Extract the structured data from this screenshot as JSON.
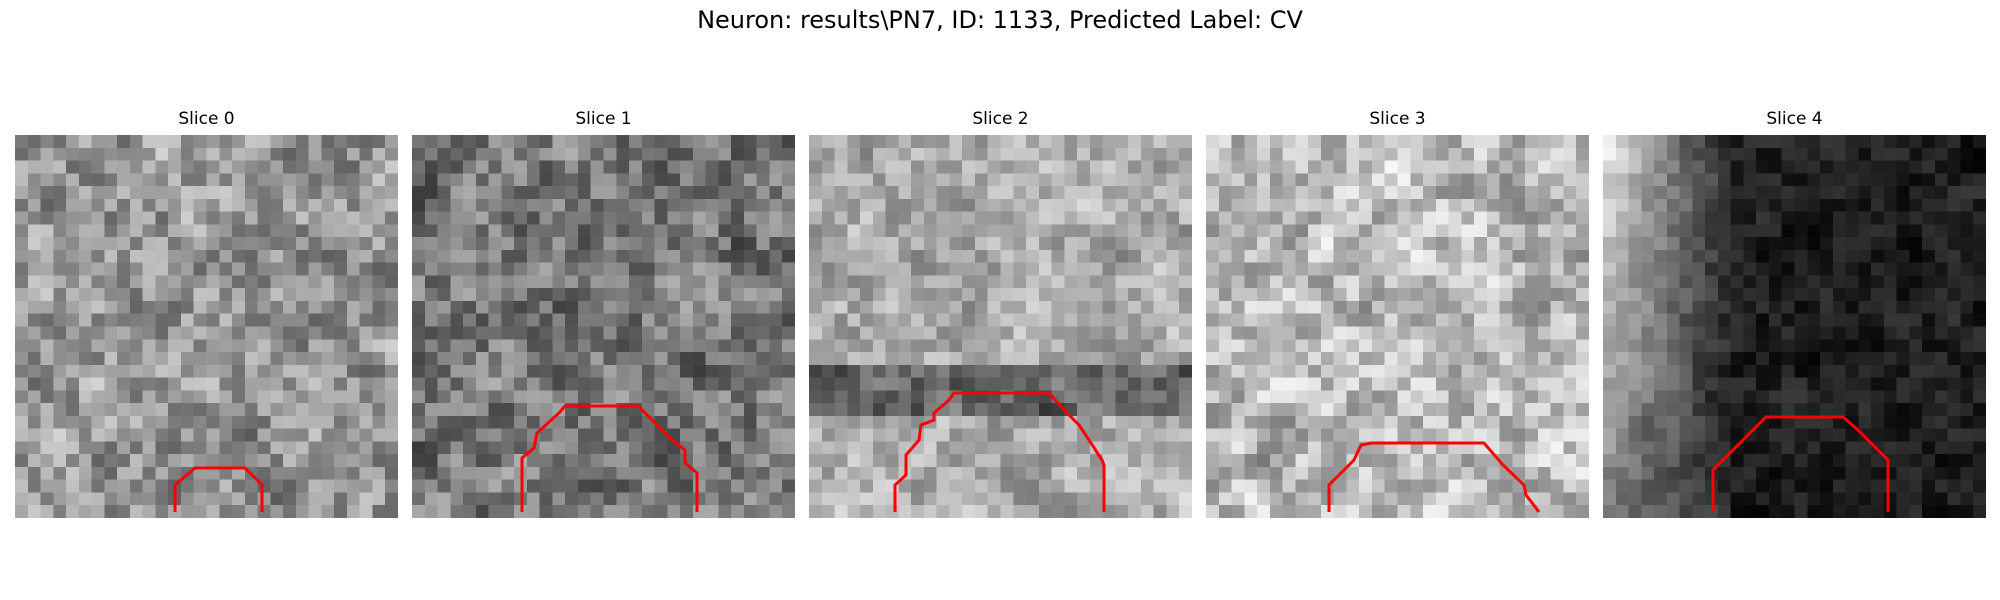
{
  "figure": {
    "title": "Neuron: results\\PN7, ID: 1133, Predicted Label: CV"
  },
  "slices": [
    {
      "title": "Slice 0",
      "contour_color": "#ff0000",
      "tone": "mid"
    },
    {
      "title": "Slice 1",
      "contour_color": "#ff0000",
      "tone": "mid-dark"
    },
    {
      "title": "Slice 2",
      "contour_color": "#ff0000",
      "tone": "light-band"
    },
    {
      "title": "Slice 3",
      "contour_color": "#ff0000",
      "tone": "light"
    },
    {
      "title": "Slice 4",
      "contour_color": "#ff0000",
      "tone": "light-left-dark-right"
    }
  ]
}
